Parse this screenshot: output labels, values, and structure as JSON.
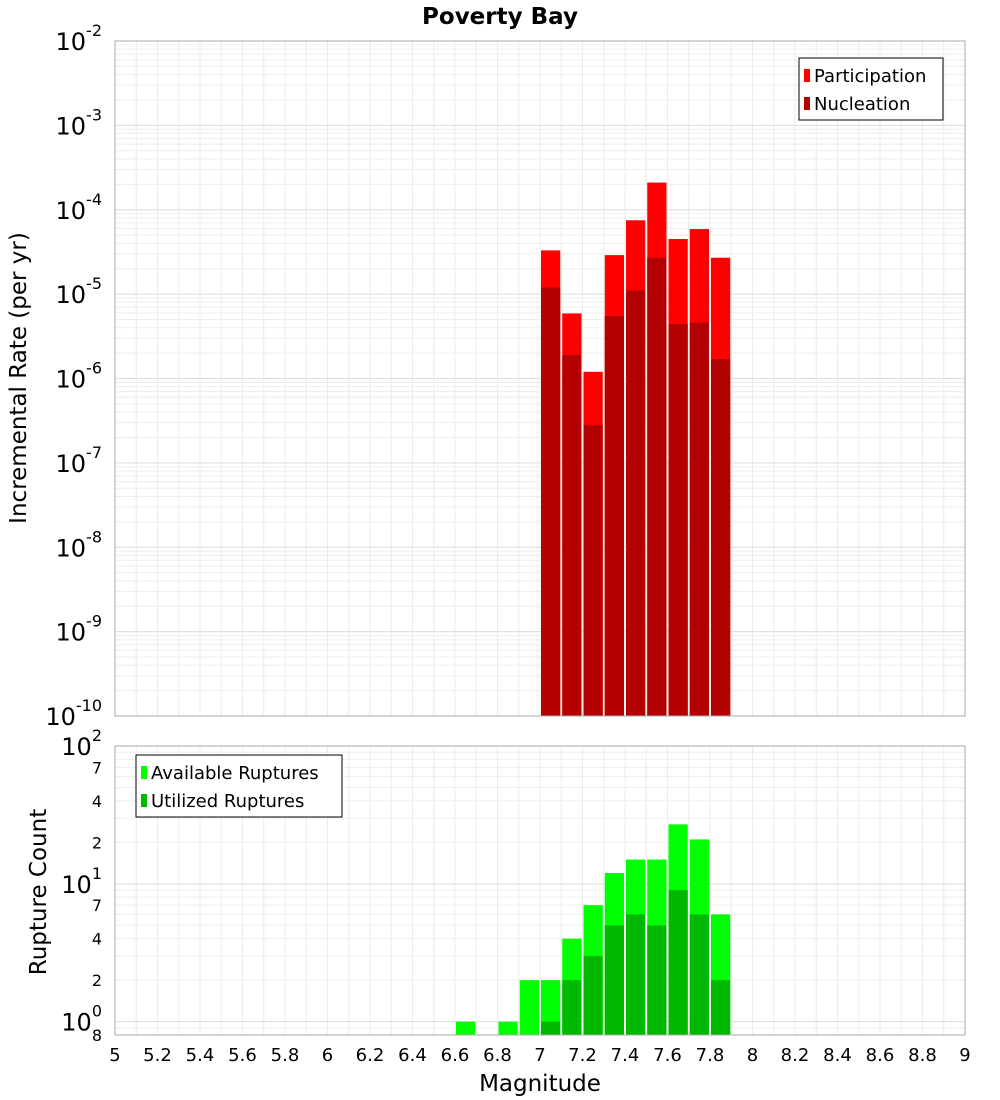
{
  "chart_data": [
    {
      "type": "bar",
      "title": "Poverty Bay",
      "ylabel": "Incremental Rate (per yr)",
      "xlabel": "",
      "yscale": "log",
      "ylim": [
        1e-10,
        0.01
      ],
      "xlim": [
        5,
        9
      ],
      "grid": true,
      "legend_position": "top-right",
      "x": [
        7.05,
        7.15,
        7.25,
        7.35,
        7.45,
        7.55,
        7.65,
        7.75,
        7.85
      ],
      "series": [
        {
          "name": "Participation",
          "color": "#ff0000",
          "values": [
            3.3e-05,
            5.9e-06,
            1.2e-06,
            2.9e-05,
            7.5e-05,
            0.00021,
            4.5e-05,
            5.9e-05,
            2.7e-05
          ]
        },
        {
          "name": "Nucleation",
          "color": "#b30000",
          "values": [
            1.2e-05,
            1.9e-06,
            2.8e-07,
            5.5e-06,
            1.1e-05,
            2.7e-05,
            4.4e-06,
            4.6e-06,
            1.7e-06
          ]
        }
      ],
      "y_ticks": [
        {
          "value": 0.01,
          "base": "10",
          "exp": "-2"
        },
        {
          "value": 0.001,
          "base": "10",
          "exp": "-3"
        },
        {
          "value": 0.0001,
          "base": "10",
          "exp": "-4"
        },
        {
          "value": 1e-05,
          "base": "10",
          "exp": "-5"
        },
        {
          "value": 1e-06,
          "base": "10",
          "exp": "-6"
        },
        {
          "value": 1e-07,
          "base": "10",
          "exp": "-7"
        },
        {
          "value": 1e-08,
          "base": "10",
          "exp": "-8"
        },
        {
          "value": 1e-09,
          "base": "10",
          "exp": "-9"
        },
        {
          "value": 1e-10,
          "base": "10",
          "exp": "-10"
        }
      ]
    },
    {
      "type": "bar",
      "title": "",
      "ylabel": "Rupture Count",
      "xlabel": "Magnitude",
      "yscale": "log",
      "ylim": [
        0.8,
        100
      ],
      "xlim": [
        5,
        9
      ],
      "grid": true,
      "legend_position": "top-left",
      "x": [
        6.65,
        6.75,
        6.85,
        6.95,
        7.05,
        7.15,
        7.25,
        7.35,
        7.45,
        7.55,
        7.65,
        7.75,
        7.85
      ],
      "series": [
        {
          "name": "Available Ruptures",
          "color": "#00ff00",
          "values": [
            1,
            0,
            1,
            2,
            2,
            4,
            7,
            12,
            15,
            15,
            27,
            21,
            6
          ]
        },
        {
          "name": "Utilized Ruptures",
          "color": "#00b800",
          "values": [
            0,
            0,
            0,
            0,
            1,
            2,
            3,
            5,
            6,
            5,
            9,
            6,
            2
          ]
        }
      ],
      "y_ticks": [
        {
          "value": 100,
          "base": "10",
          "exp": "2"
        },
        {
          "value": 70,
          "base": "7",
          "exp": ""
        },
        {
          "value": 40,
          "base": "4",
          "exp": ""
        },
        {
          "value": 20,
          "base": "2",
          "exp": ""
        },
        {
          "value": 10,
          "base": "10",
          "exp": "1"
        },
        {
          "value": 7,
          "base": "7",
          "exp": ""
        },
        {
          "value": 4,
          "base": "4",
          "exp": ""
        },
        {
          "value": 2,
          "base": "2",
          "exp": ""
        },
        {
          "value": 1,
          "base": "10",
          "exp": "0"
        },
        {
          "value": 0.8,
          "base": "8",
          "exp": ""
        }
      ],
      "x_ticks": [
        "5",
        "5.2",
        "5.4",
        "5.6",
        "5.8",
        "6",
        "6.2",
        "6.4",
        "6.6",
        "6.8",
        "7",
        "7.2",
        "7.4",
        "7.6",
        "7.8",
        "8",
        "8.2",
        "8.4",
        "8.6",
        "8.8",
        "9"
      ]
    }
  ]
}
